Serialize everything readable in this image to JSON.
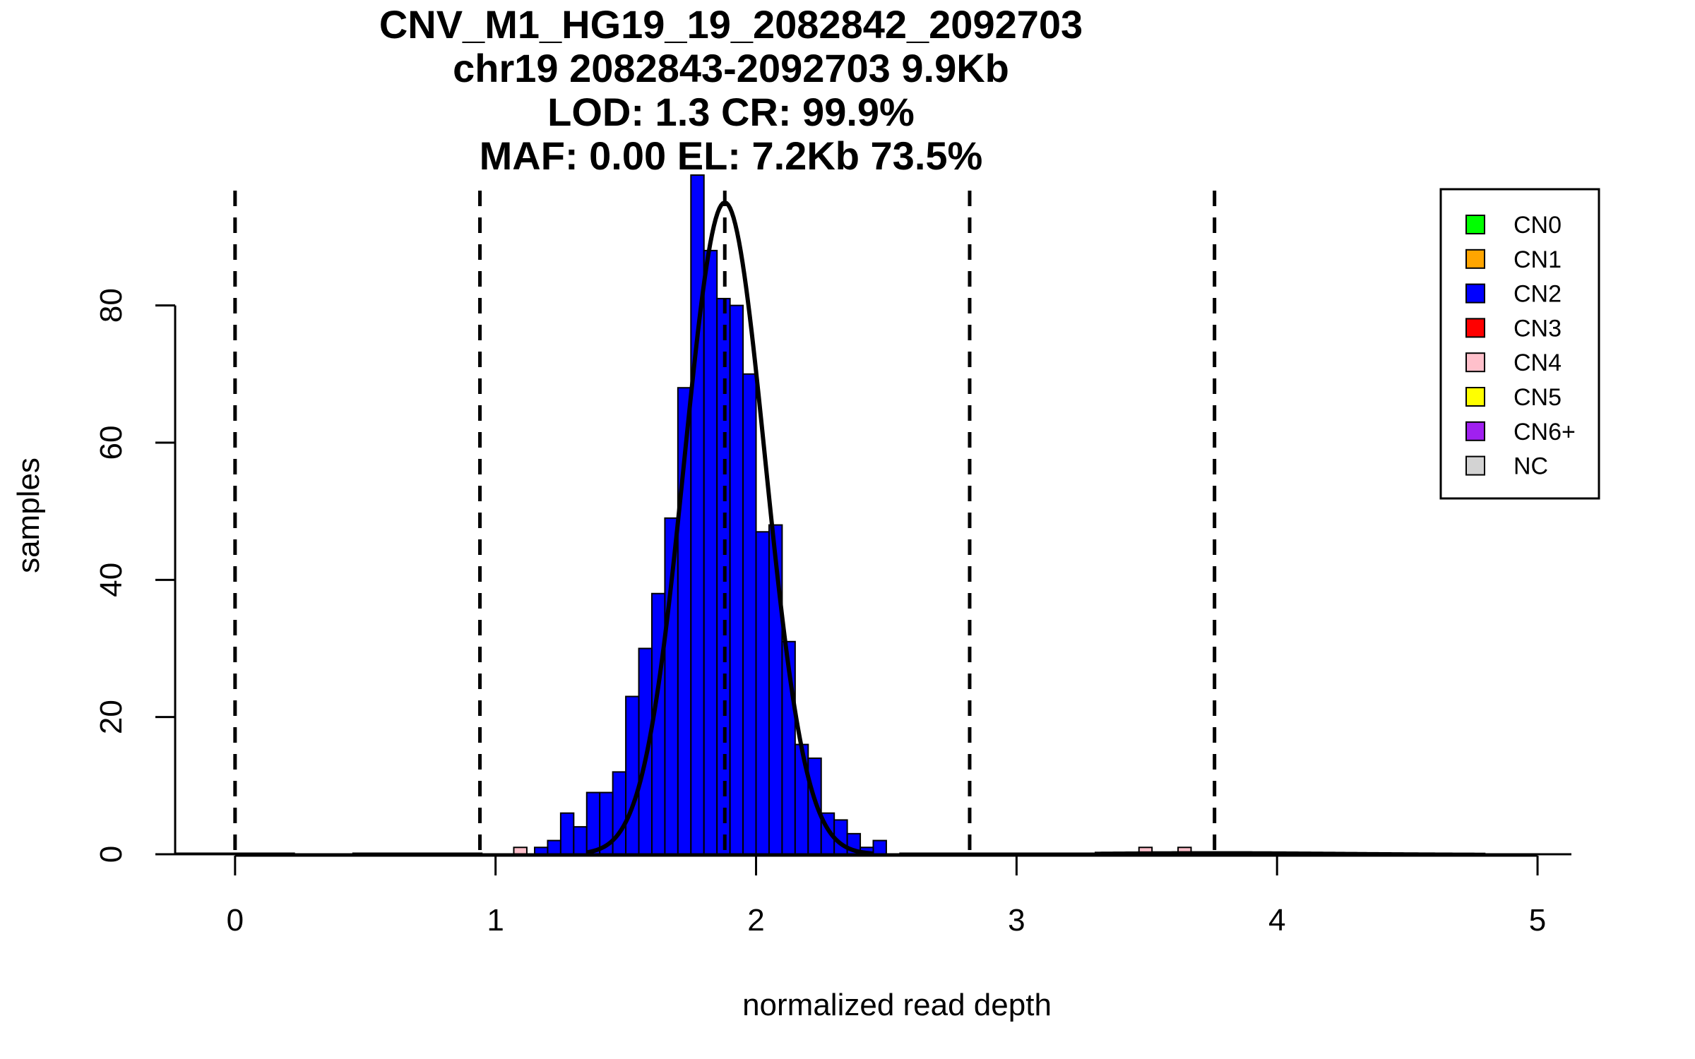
{
  "chart_data": {
    "type": "bar",
    "title_lines": [
      "CNV_M1_HG19_19_2082842_2092703",
      "chr19 2082843-2092703 9.9Kb",
      "LOD: 1.3 CR: 99.9%",
      "MAF: 0.00 EL: 7.2Kb 73.5%"
    ],
    "xlabel": "normalized read depth",
    "ylabel": "samples",
    "xlim": [
      -0.23,
      5.13
    ],
    "ylim": [
      0,
      99
    ],
    "x_ticks": [
      0,
      1,
      2,
      3,
      4,
      5
    ],
    "x_tick_labels": [
      "0",
      "1",
      "2",
      "3",
      "4",
      "5"
    ],
    "y_ticks": [
      0,
      20,
      40,
      60,
      80
    ],
    "y_tick_labels": [
      "0",
      "20",
      "40",
      "60",
      "80"
    ],
    "bin_width": 0.05,
    "series": [
      {
        "name": "CN2",
        "color": "#0000ff",
        "bins": [
          {
            "x0": 1.15,
            "count": 1
          },
          {
            "x0": 1.2,
            "count": 2
          },
          {
            "x0": 1.25,
            "count": 6
          },
          {
            "x0": 1.3,
            "count": 4
          },
          {
            "x0": 1.35,
            "count": 9
          },
          {
            "x0": 1.4,
            "count": 9
          },
          {
            "x0": 1.45,
            "count": 12
          },
          {
            "x0": 1.5,
            "count": 23
          },
          {
            "x0": 1.55,
            "count": 30
          },
          {
            "x0": 1.6,
            "count": 38
          },
          {
            "x0": 1.65,
            "count": 49
          },
          {
            "x0": 1.7,
            "count": 68
          },
          {
            "x0": 1.75,
            "count": 99
          },
          {
            "x0": 1.8,
            "count": 88
          },
          {
            "x0": 1.85,
            "count": 81
          },
          {
            "x0": 1.9,
            "count": 80
          },
          {
            "x0": 1.95,
            "count": 70
          },
          {
            "x0": 2.0,
            "count": 47
          },
          {
            "x0": 2.05,
            "count": 48
          },
          {
            "x0": 2.1,
            "count": 31
          },
          {
            "x0": 2.15,
            "count": 16
          },
          {
            "x0": 2.2,
            "count": 14
          },
          {
            "x0": 2.25,
            "count": 6
          },
          {
            "x0": 2.3,
            "count": 5
          },
          {
            "x0": 2.35,
            "count": 3
          },
          {
            "x0": 2.4,
            "count": 1
          },
          {
            "x0": 2.45,
            "count": 2
          }
        ]
      },
      {
        "name": "CN4",
        "color": "#ffc0cb",
        "bins": [
          {
            "x0": 1.07,
            "count": 1
          },
          {
            "x0": 3.47,
            "count": 1
          },
          {
            "x0": 3.62,
            "count": 1
          }
        ]
      }
    ],
    "fit_curves": [
      {
        "type": "gaussian",
        "mu": 1.88,
        "sigma": 0.155,
        "peak": 95,
        "x_range": [
          1.35,
          2.45
        ],
        "style": "solid",
        "width": 6
      },
      {
        "type": "gaussian",
        "mu": 3.75,
        "sigma": 0.5,
        "peak": 0.25,
        "x_range": [
          3.3,
          4.8
        ],
        "style": "solid",
        "width": 4
      },
      {
        "type": "flat",
        "segments": [
          [
            -0.23,
            0.23
          ],
          [
            0.45,
            0.95
          ],
          [
            2.55,
            3.4
          ]
        ],
        "y": 0.1,
        "width": 3
      }
    ],
    "vlines": {
      "x": [
        0,
        0.94,
        1.88,
        2.82,
        3.76
      ],
      "style": "dashed"
    },
    "grid": false,
    "legend": {
      "position": "top-right",
      "items": [
        {
          "label": "CN0",
          "color": "#00ff00"
        },
        {
          "label": "CN1",
          "color": "#ffa500"
        },
        {
          "label": "CN2",
          "color": "#0000ff"
        },
        {
          "label": "CN3",
          "color": "#ff0000"
        },
        {
          "label": "CN4",
          "color": "#ffc0cb"
        },
        {
          "label": "CN5",
          "color": "#ffff00"
        },
        {
          "label": "CN6+",
          "color": "#a020f0"
        },
        {
          "label": "NC",
          "color": "#d3d3d3"
        }
      ]
    }
  }
}
